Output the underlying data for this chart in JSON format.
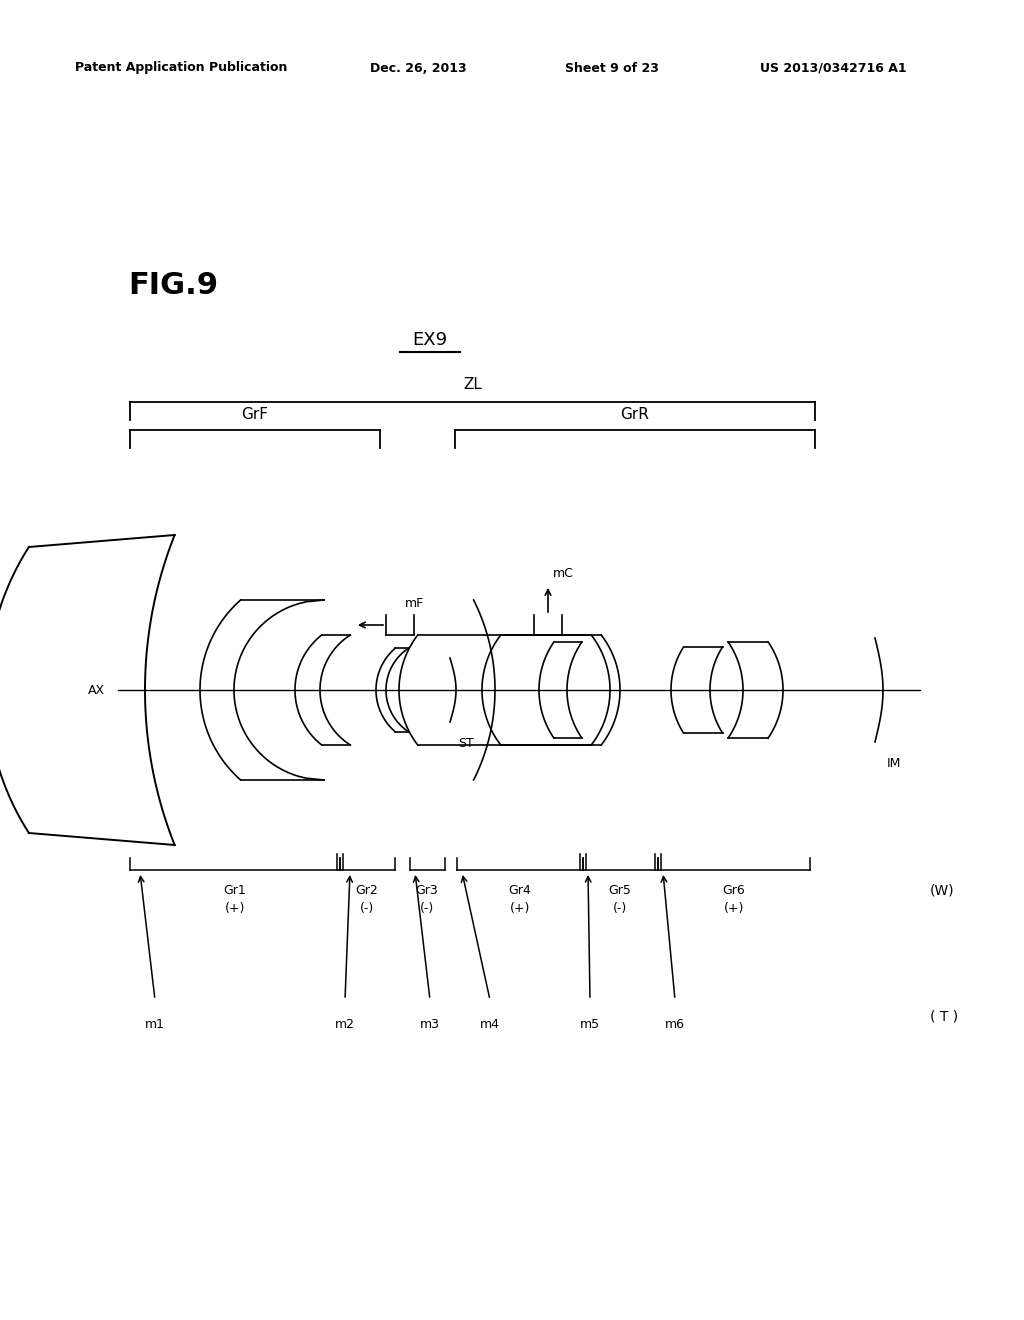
{
  "bg_color": "#ffffff",
  "header_text": "Patent Application Publication",
  "header_date": "Dec. 26, 2013",
  "header_sheet": "Sheet 9 of 23",
  "header_patent": "US 2013/0342716 A1",
  "fig_label": "FIG.9",
  "ex_label": "EX9",
  "ax_label": "AX",
  "zl_label": "ZL",
  "grf_label": "GrF",
  "grr_label": "GrR",
  "st_label": "ST",
  "im_label": "IM",
  "mf_label": "mF",
  "mc_label": "mC",
  "w_label": "(W)",
  "t_label": "( T )",
  "gr_labels": [
    "Gr1",
    "Gr2",
    "Gr3",
    "Gr4",
    "Gr5",
    "Gr6"
  ],
  "gr_signs": [
    "(+)",
    "(-)",
    "(-)",
    "(+)",
    "(-)",
    "(+)"
  ],
  "m_labels": [
    "m1",
    "m2",
    "m3",
    "m4",
    "m5",
    "m6"
  ]
}
